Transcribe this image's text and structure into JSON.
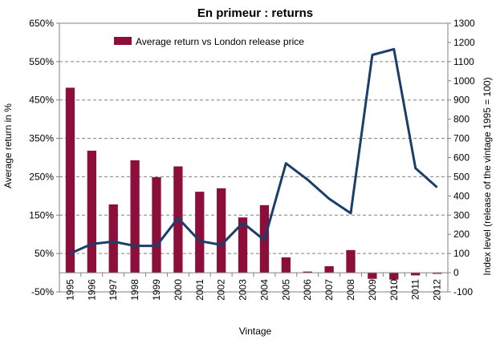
{
  "chart_data": {
    "type": "bar",
    "title": "En primeur : returns",
    "xlabel": "Vintage",
    "ylabel": "Average return in %",
    "y2label": "Index level (release of the vintage 1995 = 100)",
    "categories": [
      "1995",
      "1996",
      "1997",
      "1998",
      "1999",
      "2000",
      "2001",
      "2002",
      "2003",
      "2004",
      "2005",
      "2006",
      "2007",
      "2008",
      "2009",
      "2010",
      "2011",
      "2012"
    ],
    "ylim": [
      -50,
      650
    ],
    "yticks": [
      -50,
      50,
      150,
      250,
      350,
      450,
      550,
      650
    ],
    "ytick_labels": [
      "-50%",
      "50%",
      "150%",
      "250%",
      "350%",
      "450%",
      "550%",
      "650%"
    ],
    "y2lim": [
      -100,
      1300
    ],
    "y2ticks": [
      -100,
      0,
      100,
      200,
      300,
      400,
      500,
      600,
      700,
      800,
      900,
      1000,
      1100,
      1200,
      1300
    ],
    "y2tick_labels": [
      "-100",
      "0",
      "100",
      "200",
      "300",
      "400",
      "500",
      "600",
      "700",
      "800",
      "900",
      "1000",
      "1100",
      "1200",
      "1300"
    ],
    "grid": "horizontal dashed",
    "legend_position": "top-left",
    "series": [
      {
        "name": "Average return vs London release price",
        "type": "bar",
        "axis": "left",
        "color": "#8b0f3a",
        "values": [
          482,
          318,
          178,
          293,
          249,
          277,
          211,
          220,
          144,
          176,
          40,
          3,
          17,
          59,
          -16,
          -18,
          -7,
          -3
        ]
      },
      {
        "type": "line",
        "axis": "right",
        "color": "#1b3f6b",
        "values": [
          100,
          150,
          162,
          140,
          140,
          285,
          165,
          145,
          260,
          170,
          570,
          485,
          385,
          310,
          1135,
          1165,
          545,
          445
        ]
      }
    ]
  }
}
